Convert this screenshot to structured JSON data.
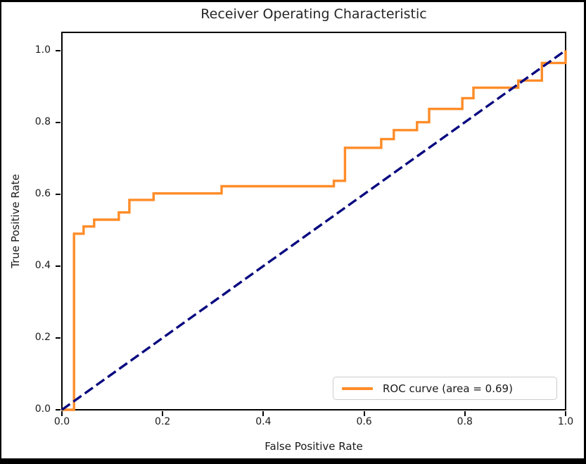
{
  "figure": {
    "title": "Receiver Operating Characteristic",
    "xlabel": "False Positive Rate",
    "ylabel": "True Positive Rate"
  },
  "legend": {
    "position": "lower right",
    "entries": [
      {
        "label": "ROC curve (area = 0.69)",
        "color": "#ff8c28",
        "style": "solid"
      }
    ]
  },
  "chart_data": {
    "type": "line",
    "title": "Receiver Operating Characteristic",
    "xlabel": "False Positive Rate",
    "ylabel": "True Positive Rate",
    "xlim": [
      0.0,
      1.0
    ],
    "ylim": [
      0.0,
      1.05
    ],
    "x_ticks": [
      "0.0",
      "0.2",
      "0.4",
      "0.6",
      "0.8",
      "1.0"
    ],
    "y_ticks": [
      "0.0",
      "0.2",
      "0.4",
      "0.6",
      "0.8",
      "1.0"
    ],
    "x_tick_values": [
      0.0,
      0.2,
      0.4,
      0.6,
      0.8,
      1.0
    ],
    "y_tick_values": [
      0.0,
      0.2,
      0.4,
      0.6,
      0.8,
      1.0
    ],
    "grid": false,
    "legend_position": "lower right",
    "auc": 0.69,
    "series": [
      {
        "name": "roc-curve",
        "label": "ROC curve (area = 0.69)",
        "color": "#ff8c28",
        "style": "solid",
        "width": 3.4,
        "points": [
          [
            0.0,
            0.0
          ],
          [
            0.024,
            0.0
          ],
          [
            0.024,
            0.49
          ],
          [
            0.043,
            0.49
          ],
          [
            0.043,
            0.51
          ],
          [
            0.064,
            0.51
          ],
          [
            0.064,
            0.529
          ],
          [
            0.113,
            0.529
          ],
          [
            0.113,
            0.549
          ],
          [
            0.134,
            0.549
          ],
          [
            0.134,
            0.584
          ],
          [
            0.182,
            0.584
          ],
          [
            0.182,
            0.602
          ],
          [
            0.317,
            0.602
          ],
          [
            0.317,
            0.622
          ],
          [
            0.54,
            0.622
          ],
          [
            0.54,
            0.637
          ],
          [
            0.562,
            0.637
          ],
          [
            0.562,
            0.729
          ],
          [
            0.634,
            0.729
          ],
          [
            0.634,
            0.753
          ],
          [
            0.659,
            0.753
          ],
          [
            0.659,
            0.778
          ],
          [
            0.705,
            0.778
          ],
          [
            0.705,
            0.8
          ],
          [
            0.729,
            0.8
          ],
          [
            0.729,
            0.837
          ],
          [
            0.795,
            0.837
          ],
          [
            0.795,
            0.867
          ],
          [
            0.817,
            0.867
          ],
          [
            0.817,
            0.896
          ],
          [
            0.906,
            0.896
          ],
          [
            0.906,
            0.916
          ],
          [
            0.953,
            0.916
          ],
          [
            0.953,
            0.965
          ],
          [
            1.0,
            0.965
          ],
          [
            1.0,
            1.0
          ]
        ]
      },
      {
        "name": "chance-diagonal",
        "label": "",
        "color": "#0a0a80",
        "style": "dashed",
        "width": 3.4,
        "points": [
          [
            0.0,
            0.0
          ],
          [
            1.0,
            1.0
          ]
        ]
      }
    ]
  }
}
